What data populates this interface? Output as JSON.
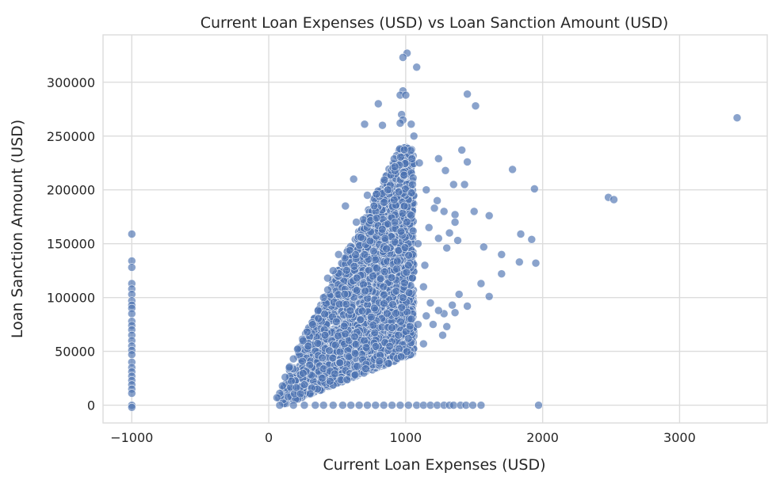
{
  "chart_data": {
    "type": "scatter",
    "title": "Current Loan Expenses (USD) vs Loan Sanction Amount (USD)",
    "xlabel": "Current Loan Expenses (USD)",
    "ylabel": "Loan Sanction Amount (USD)",
    "xlim": [
      -1210,
      3640
    ],
    "ylim": [
      -16500,
      344000
    ],
    "xticks": [
      {
        "value": -1000,
        "label": "−1000"
      },
      {
        "value": 0,
        "label": "0"
      },
      {
        "value": 1000,
        "label": "1000"
      },
      {
        "value": 2000,
        "label": "2000"
      },
      {
        "value": 3000,
        "label": "3000"
      }
    ],
    "yticks": [
      {
        "value": 0,
        "label": "0"
      },
      {
        "value": 50000,
        "label": "50000"
      },
      {
        "value": 100000,
        "label": "100000"
      },
      {
        "value": 150000,
        "label": "150000"
      },
      {
        "value": 200000,
        "label": "200000"
      },
      {
        "value": 250000,
        "label": "250000"
      },
      {
        "value": 300000,
        "label": "300000"
      }
    ],
    "grid": true,
    "colors": {
      "point": "#4c72b0",
      "point_edge": "#ffffff",
      "grid": "#dcdcdc",
      "background": "#ffffff"
    },
    "series": [
      {
        "points": [
          [
            -1000,
            159000
          ],
          [
            -1000,
            134000
          ],
          [
            -1000,
            128000
          ],
          [
            -1000,
            113000
          ],
          [
            -1000,
            108000
          ],
          [
            -1000,
            103000
          ],
          [
            -1000,
            97000
          ],
          [
            -1000,
            93000
          ],
          [
            -1000,
            90000
          ],
          [
            -1000,
            85000
          ],
          [
            -1000,
            78000
          ],
          [
            -1000,
            74000
          ],
          [
            -1000,
            70000
          ],
          [
            -1000,
            65000
          ],
          [
            -1000,
            60000
          ],
          [
            -1000,
            55000
          ],
          [
            -1000,
            51000
          ],
          [
            -1000,
            47000
          ],
          [
            -1000,
            40000
          ],
          [
            -1000,
            35000
          ],
          [
            -1000,
            31000
          ],
          [
            -1000,
            27000
          ],
          [
            -1000,
            23000
          ],
          [
            -1000,
            19000
          ],
          [
            -1000,
            15000
          ],
          [
            -1000,
            11000
          ],
          [
            -1000,
            0
          ],
          [
            -1000,
            -2000
          ],
          [
            1010,
            327000
          ],
          [
            980,
            323000
          ],
          [
            1080,
            314000
          ],
          [
            980,
            292000
          ],
          [
            960,
            288000
          ],
          [
            1000,
            288000
          ],
          [
            1450,
            289000
          ],
          [
            1510,
            278000
          ],
          [
            800,
            280000
          ],
          [
            970,
            270000
          ],
          [
            980,
            265000
          ],
          [
            960,
            262000
          ],
          [
            700,
            261000
          ],
          [
            830,
            260000
          ],
          [
            1040,
            261000
          ],
          [
            1060,
            250000
          ],
          [
            3420,
            267000
          ],
          [
            1410,
            237000
          ],
          [
            1450,
            226000
          ],
          [
            1240,
            229000
          ],
          [
            1290,
            218000
          ],
          [
            1350,
            205000
          ],
          [
            1430,
            205000
          ],
          [
            1780,
            219000
          ],
          [
            1940,
            201000
          ],
          [
            2480,
            193000
          ],
          [
            2520,
            191000
          ],
          [
            1610,
            176000
          ],
          [
            1360,
            177000
          ],
          [
            1320,
            160000
          ],
          [
            1240,
            155000
          ],
          [
            1840,
            159000
          ],
          [
            1920,
            154000
          ],
          [
            1380,
            153000
          ],
          [
            1300,
            146000
          ],
          [
            1570,
            147000
          ],
          [
            1700,
            140000
          ],
          [
            1830,
            133000
          ],
          [
            1950,
            132000
          ],
          [
            1700,
            122000
          ],
          [
            1550,
            113000
          ],
          [
            1610,
            101000
          ],
          [
            1390,
            103000
          ],
          [
            1450,
            92000
          ],
          [
            1340,
            93000
          ],
          [
            1280,
            85000
          ],
          [
            1360,
            86000
          ],
          [
            1200,
            75000
          ],
          [
            1270,
            65000
          ],
          [
            1300,
            73000
          ],
          [
            1130,
            57000
          ],
          [
            1020,
            62000
          ],
          [
            900,
            72000
          ],
          [
            870,
            200000
          ],
          [
            720,
            195000
          ],
          [
            620,
            210000
          ],
          [
            560,
            185000
          ],
          [
            640,
            170000
          ],
          [
            510,
            140000
          ],
          [
            470,
            125000
          ],
          [
            430,
            118000
          ],
          [
            400,
            100000
          ],
          [
            360,
            88000
          ],
          [
            320,
            75000
          ],
          [
            280,
            68000
          ],
          [
            250,
            60000
          ],
          [
            210,
            52000
          ],
          [
            180,
            43000
          ],
          [
            150,
            35000
          ],
          [
            120,
            26000
          ],
          [
            100,
            18000
          ],
          [
            80,
            11000
          ],
          [
            60,
            7000
          ],
          [
            700,
            140000
          ],
          [
            760,
            120000
          ],
          [
            850,
            155000
          ],
          [
            920,
            170000
          ],
          [
            990,
            185000
          ],
          [
            1050,
            205000
          ],
          [
            1100,
            225000
          ],
          [
            1150,
            200000
          ],
          [
            1210,
            183000
          ],
          [
            1170,
            165000
          ],
          [
            1090,
            150000
          ],
          [
            1020,
            130000
          ],
          [
            1140,
            130000
          ],
          [
            1130,
            110000
          ],
          [
            1180,
            95000
          ],
          [
            1240,
            88000
          ],
          [
            1150,
            83000
          ],
          [
            1090,
            75000
          ],
          [
            1040,
            80000
          ],
          [
            980,
            100000
          ],
          [
            1230,
            190000
          ],
          [
            1280,
            180000
          ],
          [
            1360,
            170000
          ],
          [
            1500,
            180000
          ]
        ]
      },
      {
        "points": [
          [
            80,
            0
          ],
          [
            180,
            0
          ],
          [
            260,
            0
          ],
          [
            340,
            0
          ],
          [
            400,
            0
          ],
          [
            470,
            0
          ],
          [
            540,
            0
          ],
          [
            600,
            0
          ],
          [
            660,
            0
          ],
          [
            720,
            0
          ],
          [
            780,
            0
          ],
          [
            840,
            0
          ],
          [
            900,
            0
          ],
          [
            960,
            0
          ],
          [
            1020,
            0
          ],
          [
            1080,
            0
          ],
          [
            1130,
            0
          ],
          [
            1180,
            0
          ],
          [
            1230,
            0
          ],
          [
            1280,
            0
          ],
          [
            1320,
            0
          ],
          [
            1350,
            0
          ],
          [
            1400,
            0
          ],
          [
            1440,
            0
          ],
          [
            1490,
            0
          ],
          [
            1550,
            0
          ],
          [
            1970,
            0
          ]
        ]
      }
    ],
    "dense_region": {
      "description": "Wedge-shaped cloud between lower bound y = 50*x - 5000 and upper bound y = 250*x, for x in [60, 1060]",
      "x_range": [
        60,
        1060
      ],
      "lower_slope": 50,
      "lower_intercept": -5000,
      "upper_slope": 250,
      "upper_intercept": 0,
      "upper_max": 240000
    }
  }
}
